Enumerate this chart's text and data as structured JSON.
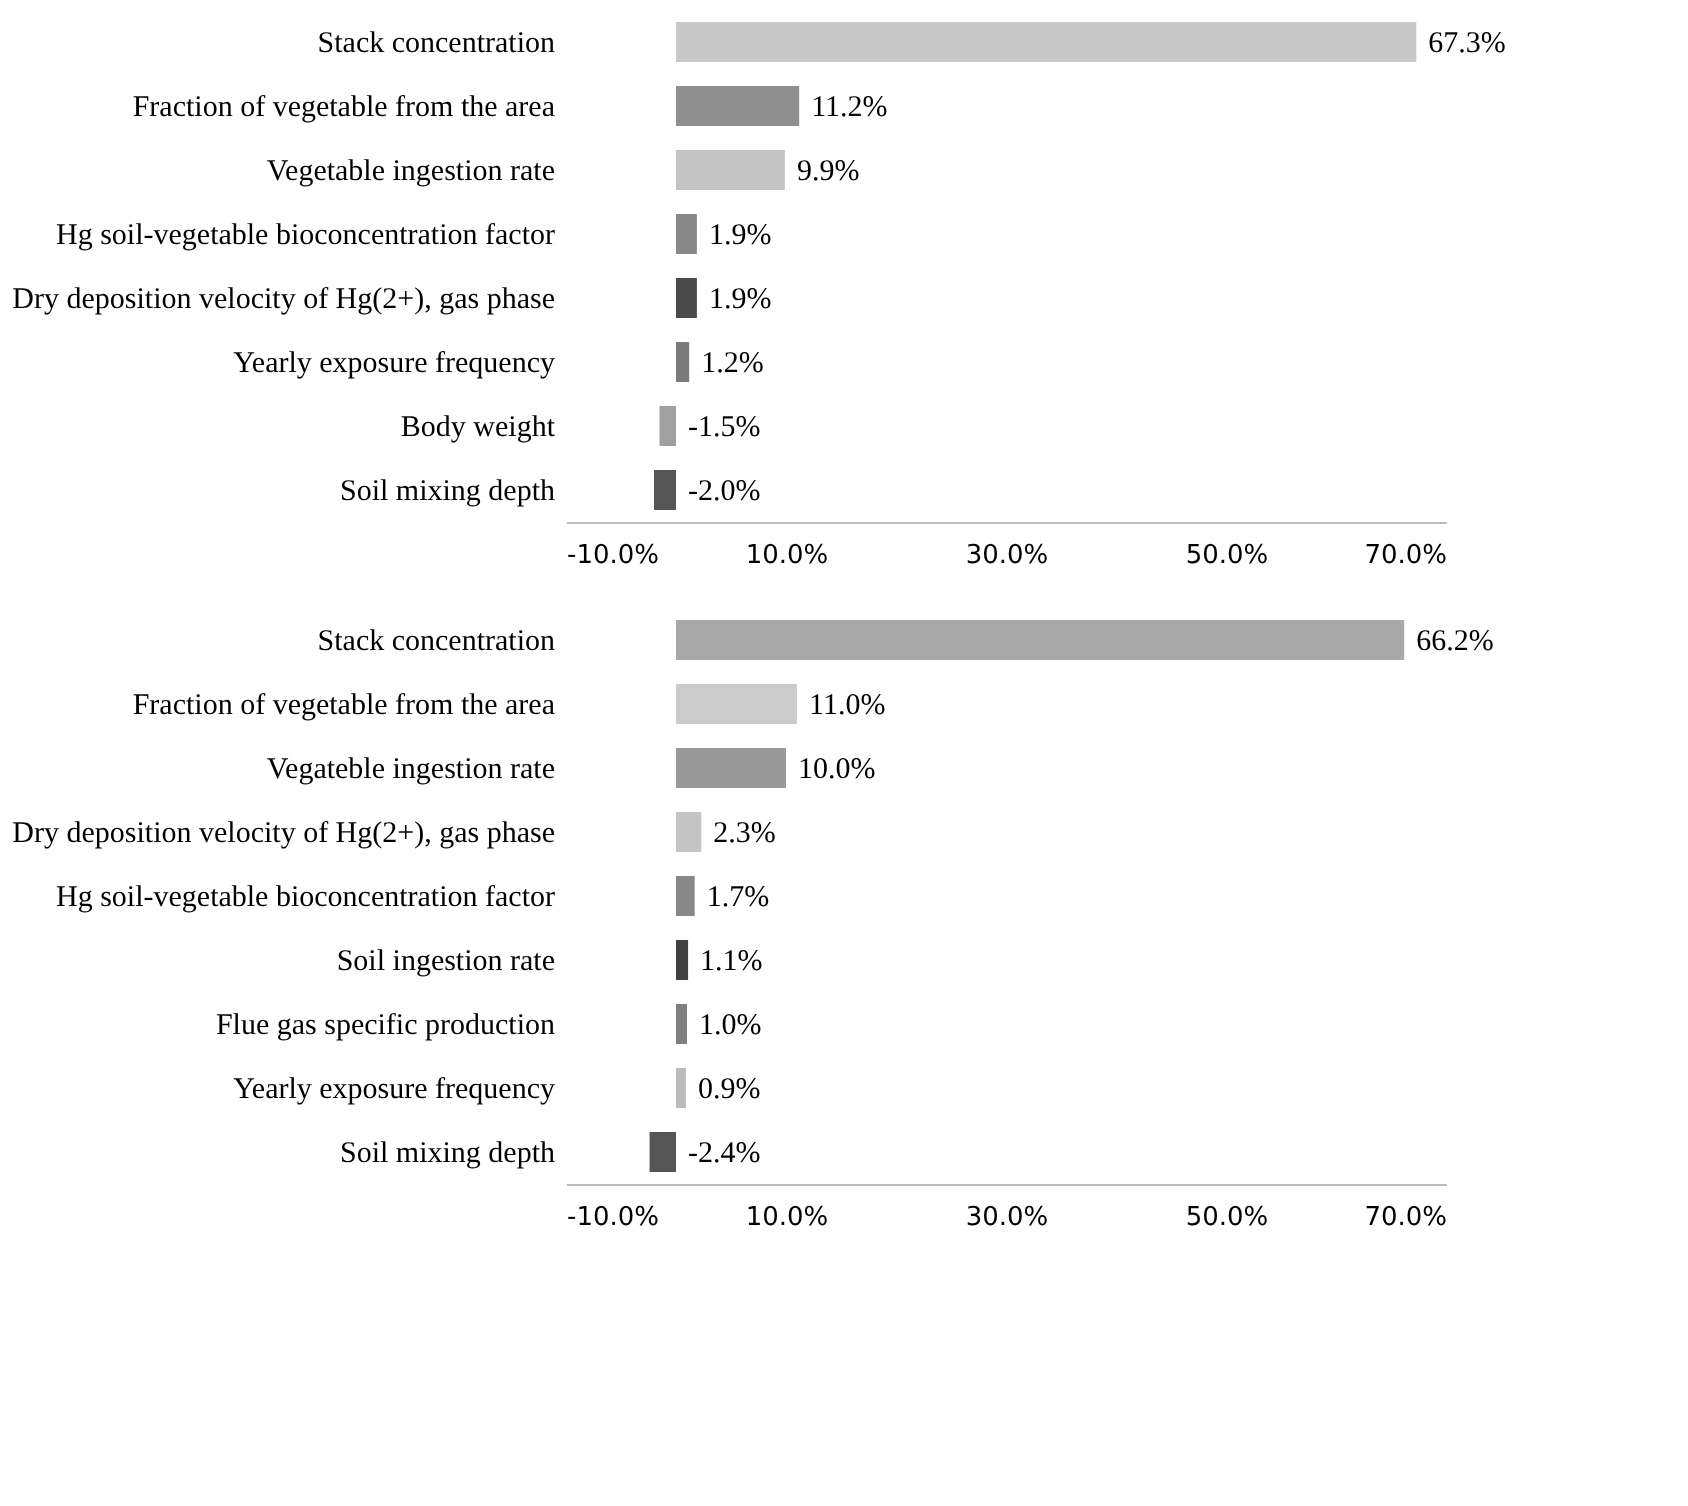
{
  "chart_data": [
    {
      "type": "bar",
      "orientation": "horizontal",
      "categories": [
        "Stack concentration",
        "Fraction of vegetable from the area",
        "Vegetable ingestion rate",
        "Hg soil-vegetable bioconcentration factor",
        "Dry deposition velocity of Hg(2+), gas phase",
        "Yearly exposure frequency",
        "Body weight",
        "Soil mixing depth"
      ],
      "values": [
        67.3,
        11.2,
        9.9,
        1.9,
        1.9,
        1.2,
        -1.5,
        -2.0
      ],
      "colors": [
        "#c8c8c8",
        "#8f8f8f",
        "#c4c4c4",
        "#888888",
        "#4a4a4a",
        "#7a7a7a",
        "#a0a0a0",
        "#555555"
      ],
      "value_labels": [
        "67.3%",
        "11.2%",
        "9.9%",
        "1.9%",
        "1.9%",
        "1.2%",
        "-1.5%",
        "-2.0%"
      ],
      "xlim": [
        -10,
        70
      ],
      "xticks": [
        {
          "value": -10,
          "label": "-10.0%"
        },
        {
          "value": 10,
          "label": "10.0%"
        },
        {
          "value": 30,
          "label": "30.0%"
        },
        {
          "value": 50,
          "label": "50.0%"
        },
        {
          "value": 70,
          "label": "70.0%"
        }
      ],
      "grid": false
    },
    {
      "type": "bar",
      "orientation": "horizontal",
      "categories": [
        "Stack concentration",
        "Fraction of vegetable from the area",
        "Vegateble ingestion rate",
        "Dry deposition velocity of Hg(2+), gas phase",
        "Hg soil-vegetable bioconcentration factor",
        "Soil ingestion rate",
        "Flue gas specific production",
        "Yearly exposure frequency",
        "Soil mixing depth"
      ],
      "values": [
        66.2,
        11.0,
        10.0,
        2.3,
        1.7,
        1.1,
        1.0,
        0.9,
        -2.4
      ],
      "colors": [
        "#a8a8a8",
        "#cccccc",
        "#999999",
        "#c4c4c4",
        "#888888",
        "#404040",
        "#7f7f7f",
        "#bbbbbb",
        "#555555"
      ],
      "value_labels": [
        "66.2%",
        "11.0%",
        "10.0%",
        "2.3%",
        "1.7%",
        "1.1%",
        "1.0%",
        "0.9%",
        "-2.4%"
      ],
      "xlim": [
        -10,
        70
      ],
      "xticks": [
        {
          "value": -10,
          "label": "-10.0%"
        },
        {
          "value": 10,
          "label": "10.0%"
        },
        {
          "value": 30,
          "label": "30.0%"
        },
        {
          "value": 50,
          "label": "50.0%"
        },
        {
          "value": 70,
          "label": "70.0%"
        }
      ],
      "grid": false
    }
  ]
}
